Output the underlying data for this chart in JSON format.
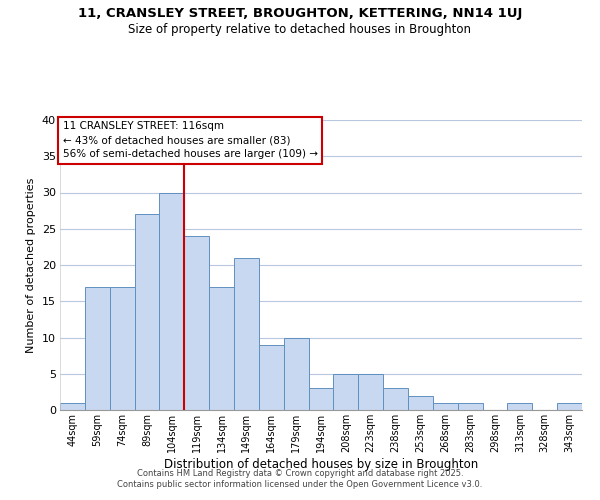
{
  "title_line1": "11, CRANSLEY STREET, BROUGHTON, KETTERING, NN14 1UJ",
  "title_line2": "Size of property relative to detached houses in Broughton",
  "xlabel": "Distribution of detached houses by size in Broughton",
  "ylabel": "Number of detached properties",
  "categories": [
    "44sqm",
    "59sqm",
    "74sqm",
    "89sqm",
    "104sqm",
    "119sqm",
    "134sqm",
    "149sqm",
    "164sqm",
    "179sqm",
    "194sqm",
    "208sqm",
    "223sqm",
    "238sqm",
    "253sqm",
    "268sqm",
    "283sqm",
    "298sqm",
    "313sqm",
    "328sqm",
    "343sqm"
  ],
  "values": [
    1,
    17,
    17,
    27,
    30,
    24,
    17,
    21,
    9,
    10,
    3,
    5,
    5,
    3,
    2,
    1,
    1,
    0,
    1,
    0,
    1
  ],
  "bar_color": "#c8d8f0",
  "bar_edge_color": "#6090c0",
  "ylim": [
    0,
    40
  ],
  "yticks": [
    0,
    5,
    10,
    15,
    20,
    25,
    30,
    35,
    40
  ],
  "vline_color": "#cc0000",
  "vline_bar_index": 4.5,
  "annotation_title": "11 CRANSLEY STREET: 116sqm",
  "annotation_line2": "← 43% of detached houses are smaller (83)",
  "annotation_line3": "56% of semi-detached houses are larger (109) →",
  "annotation_box_color": "#ffffff",
  "annotation_box_edge": "#cc0000",
  "footer_line1": "Contains HM Land Registry data © Crown copyright and database right 2025.",
  "footer_line2": "Contains public sector information licensed under the Open Government Licence v3.0.",
  "background_color": "#ffffff",
  "grid_color": "#b8c8e0"
}
